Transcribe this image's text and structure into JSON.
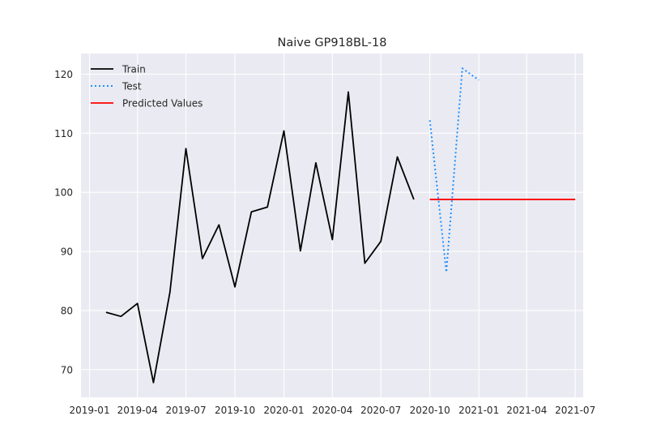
{
  "chart_data": {
    "type": "line",
    "title": "Naive GP918BL-18",
    "xlabel": "",
    "ylabel": "",
    "xlim": [
      "2018-12-16",
      "2021-07-16"
    ],
    "ylim": [
      65.3,
      123.5
    ],
    "grid": true,
    "legend_position": "top-left",
    "x_ticks": [
      "2019-01",
      "2019-04",
      "2019-07",
      "2019-10",
      "2020-01",
      "2020-04",
      "2020-07",
      "2020-10",
      "2021-01",
      "2021-04",
      "2021-07"
    ],
    "y_ticks": [
      70,
      80,
      90,
      100,
      110,
      120
    ],
    "series": [
      {
        "name": "Train",
        "color": "#000000",
        "style": "solid",
        "x": [
          "2019-02-01",
          "2019-03-01",
          "2019-04-01",
          "2019-05-01",
          "2019-06-01",
          "2019-07-01",
          "2019-08-01",
          "2019-09-01",
          "2019-10-01",
          "2019-11-01",
          "2019-12-01",
          "2020-01-01",
          "2020-02-01",
          "2020-03-01",
          "2020-04-01",
          "2020-05-01",
          "2020-06-01",
          "2020-07-01",
          "2020-08-01",
          "2020-09-01"
        ],
        "y": [
          79.7,
          79.0,
          81.2,
          67.8,
          83.1,
          107.4,
          88.8,
          94.5,
          84.0,
          96.7,
          97.5,
          110.4,
          90.1,
          105.0,
          92.0,
          117.0,
          88.0,
          91.7,
          106.0,
          98.8
        ]
      },
      {
        "name": "Test",
        "color": "#1e90ff",
        "style": "dotted",
        "x": [
          "2020-10-01",
          "2020-11-01",
          "2020-12-01",
          "2021-01-01"
        ],
        "y": [
          112.2,
          86.5,
          121.0,
          119.0
        ]
      },
      {
        "name": "Predicted Values",
        "color": "#ff0000",
        "style": "solid",
        "x": [
          "2020-10-01",
          "2021-07-01"
        ],
        "y": [
          98.8,
          98.8
        ]
      }
    ]
  }
}
